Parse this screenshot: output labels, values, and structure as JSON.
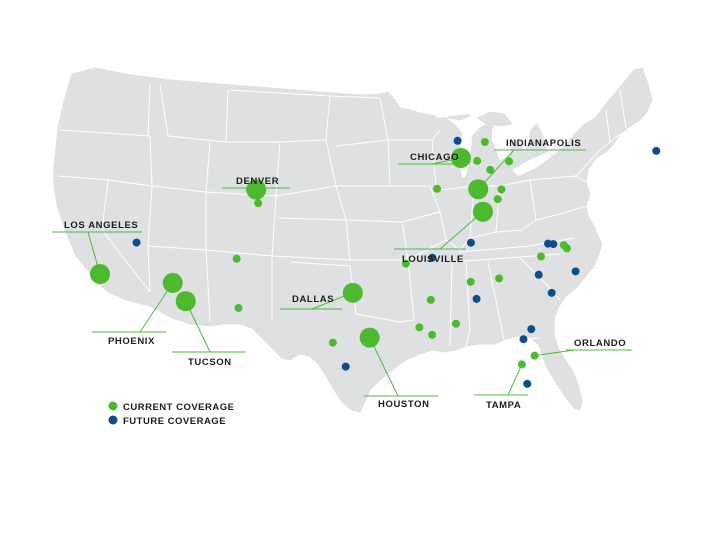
{
  "colors": {
    "land": "#dfe0e1",
    "water": "#ffffff",
    "current": "#4cb92f",
    "future": "#0d4d8c",
    "label": "#1c1c1c",
    "leader": "#4cbb3d"
  },
  "legend": {
    "current": "CURRENT COVERAGE",
    "future": "FUTURE COVERAGE"
  },
  "major_cities": [
    {
      "id": "los-angeles",
      "name": "LOS ANGELES",
      "lon": -118.24,
      "lat": 34.05
    },
    {
      "id": "phoenix",
      "name": "PHOENIX",
      "lon": -112.07,
      "lat": 33.45
    },
    {
      "id": "tucson",
      "name": "TUCSON",
      "lon": -110.97,
      "lat": 32.22
    },
    {
      "id": "denver",
      "name": "DENVER",
      "lon": -104.99,
      "lat": 39.74
    },
    {
      "id": "dallas",
      "name": "DALLAS",
      "lon": -96.8,
      "lat": 32.78
    },
    {
      "id": "houston",
      "name": "HOUSTON",
      "lon": -95.37,
      "lat": 29.76
    },
    {
      "id": "chicago",
      "name": "CHICAGO",
      "lon": -87.63,
      "lat": 41.88
    },
    {
      "id": "indianapolis",
      "name": "INDIANAPOLIS",
      "lon": -86.16,
      "lat": 39.77
    },
    {
      "id": "louisville",
      "name": "LOUISVILLE",
      "lon": -85.76,
      "lat": 38.25
    },
    {
      "id": "tampa",
      "name": "TAMPA",
      "lon": -82.46,
      "lat": 27.95
    },
    {
      "id": "orlando",
      "name": "ORLANDO",
      "lon": -81.38,
      "lat": 28.54
    }
  ],
  "current_sites": [
    {
      "lon": -104.82,
      "lat": 38.83
    },
    {
      "lon": -106.65,
      "lat": 35.08
    },
    {
      "lon": -106.49,
      "lat": 31.76
    },
    {
      "lon": -98.49,
      "lat": 29.42
    },
    {
      "lon": -92.29,
      "lat": 34.75
    },
    {
      "lon": -91.15,
      "lat": 30.45
    },
    {
      "lon": -90.07,
      "lat": 29.95
    },
    {
      "lon": -90.18,
      "lat": 32.3
    },
    {
      "lon": -88.04,
      "lat": 30.69
    },
    {
      "lon": -86.8,
      "lat": 33.52
    },
    {
      "lon": -89.65,
      "lat": 39.8
    },
    {
      "lon": -86.25,
      "lat": 41.68
    },
    {
      "lon": -85.6,
      "lat": 42.96
    },
    {
      "lon": -83.55,
      "lat": 41.65
    },
    {
      "lon": -85.14,
      "lat": 41.08
    },
    {
      "lon": -84.51,
      "lat": 39.1
    },
    {
      "lon": -84.19,
      "lat": 39.76
    },
    {
      "lon": -84.39,
      "lat": 33.75
    },
    {
      "lon": -78.64,
      "lat": 35.78
    },
    {
      "lon": -78.9,
      "lat": 36.0
    },
    {
      "lon": -80.84,
      "lat": 35.23
    }
  ],
  "future_sites": [
    {
      "lon": -71.06,
      "lat": 42.36
    },
    {
      "lon": -87.91,
      "lat": 43.04
    },
    {
      "lon": -115.14,
      "lat": 36.17
    },
    {
      "lon": -86.78,
      "lat": 36.16
    },
    {
      "lon": -86.3,
      "lat": 32.37
    },
    {
      "lon": -90.05,
      "lat": 35.15
    },
    {
      "lon": -79.79,
      "lat": 36.07
    },
    {
      "lon": -80.24,
      "lat": 36.1
    },
    {
      "lon": -81.03,
      "lat": 34.0
    },
    {
      "lon": -79.93,
      "lat": 32.78
    },
    {
      "lon": -77.9,
      "lat": 34.23
    },
    {
      "lon": -81.66,
      "lat": 30.33
    },
    {
      "lon": -82.32,
      "lat": 29.65
    },
    {
      "lon": -82.0,
      "lat": 26.64
    },
    {
      "lon": -97.4,
      "lat": 27.8
    }
  ]
}
